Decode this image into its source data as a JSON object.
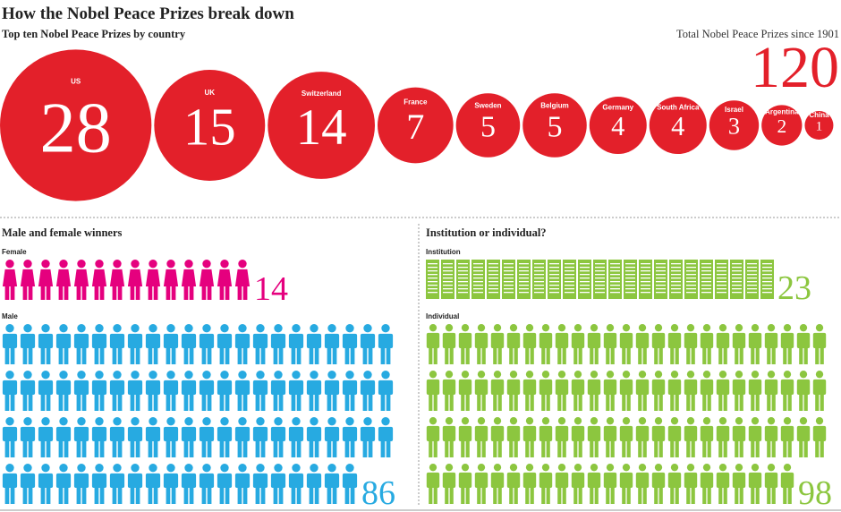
{
  "title": "How the Nobel Peace Prizes break down",
  "chart_data": [
    {
      "type": "bubble",
      "title": "Top ten Nobel Peace Prizes by country",
      "categories": [
        "US",
        "UK",
        "Switzerland",
        "France",
        "Sweden",
        "Belgium",
        "Germany",
        "South Africa",
        "Israel",
        "Argentina",
        "China"
      ],
      "values": [
        28,
        15,
        14,
        7,
        5,
        5,
        4,
        4,
        3,
        2,
        1
      ],
      "color": "#e3202a",
      "annotation": "Total Nobel Peace Prizes since 1901",
      "total": 120
    },
    {
      "type": "pictogram",
      "title": "Male and female winners",
      "series": [
        {
          "name": "Female",
          "color": "#e5007e",
          "value": 14
        },
        {
          "name": "Male",
          "color": "#27aae1",
          "value": 86
        }
      ]
    },
    {
      "type": "pictogram",
      "title": "Institution or individual?",
      "series": [
        {
          "name": "Institution",
          "color": "#8cc63f",
          "value": 23
        },
        {
          "name": "Individual",
          "color": "#8cc63f",
          "value": 98
        }
      ]
    }
  ]
}
